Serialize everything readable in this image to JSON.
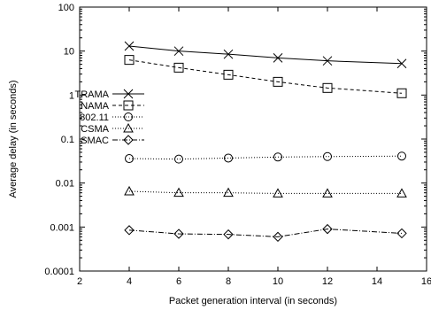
{
  "chart_data": {
    "type": "line",
    "title": "",
    "xlabel": "Packet generation interval (in seconds)",
    "ylabel": "Average delay (in seconds)",
    "xlim": [
      2,
      16
    ],
    "ylim": [
      0.0001,
      100
    ],
    "yscale": "log",
    "grid": false,
    "legend_position": "center-left",
    "x_ticks": [
      2,
      4,
      6,
      8,
      10,
      12,
      14,
      16
    ],
    "x_tick_labels": [
      "2",
      "4",
      "6",
      "8",
      "10",
      "12",
      "14",
      "16"
    ],
    "y_ticks": [
      0.0001,
      0.001,
      0.01,
      0.1,
      1,
      10,
      100
    ],
    "y_tick_labels": [
      "0.0001",
      "0.001",
      "0.01",
      "0.1",
      "1",
      "10",
      "100"
    ],
    "x": [
      4,
      6,
      8,
      10,
      12,
      15
    ],
    "series": [
      {
        "name": "TRAMA",
        "marker": "x",
        "dash": "",
        "values": [
          13.0,
          10.0,
          8.5,
          7.0,
          6.0,
          5.2
        ]
      },
      {
        "name": "NAMA",
        "marker": "square",
        "dash": "4,3",
        "values": [
          6.3,
          4.2,
          2.9,
          2.0,
          1.45,
          1.1
        ]
      },
      {
        "name": "802.11",
        "marker": "circle",
        "dash": "1,2",
        "values": [
          0.036,
          0.035,
          0.037,
          0.039,
          0.04,
          0.041
        ]
      },
      {
        "name": "CSMA",
        "marker": "triangle",
        "dash": "1,2",
        "values": [
          0.0065,
          0.006,
          0.006,
          0.0058,
          0.0058,
          0.0058
        ]
      },
      {
        "name": "SMAC",
        "marker": "diamond",
        "dash": "6,2,1,2",
        "values": [
          0.00085,
          0.0007,
          0.00068,
          0.0006,
          0.0009,
          0.00072
        ]
      }
    ]
  }
}
